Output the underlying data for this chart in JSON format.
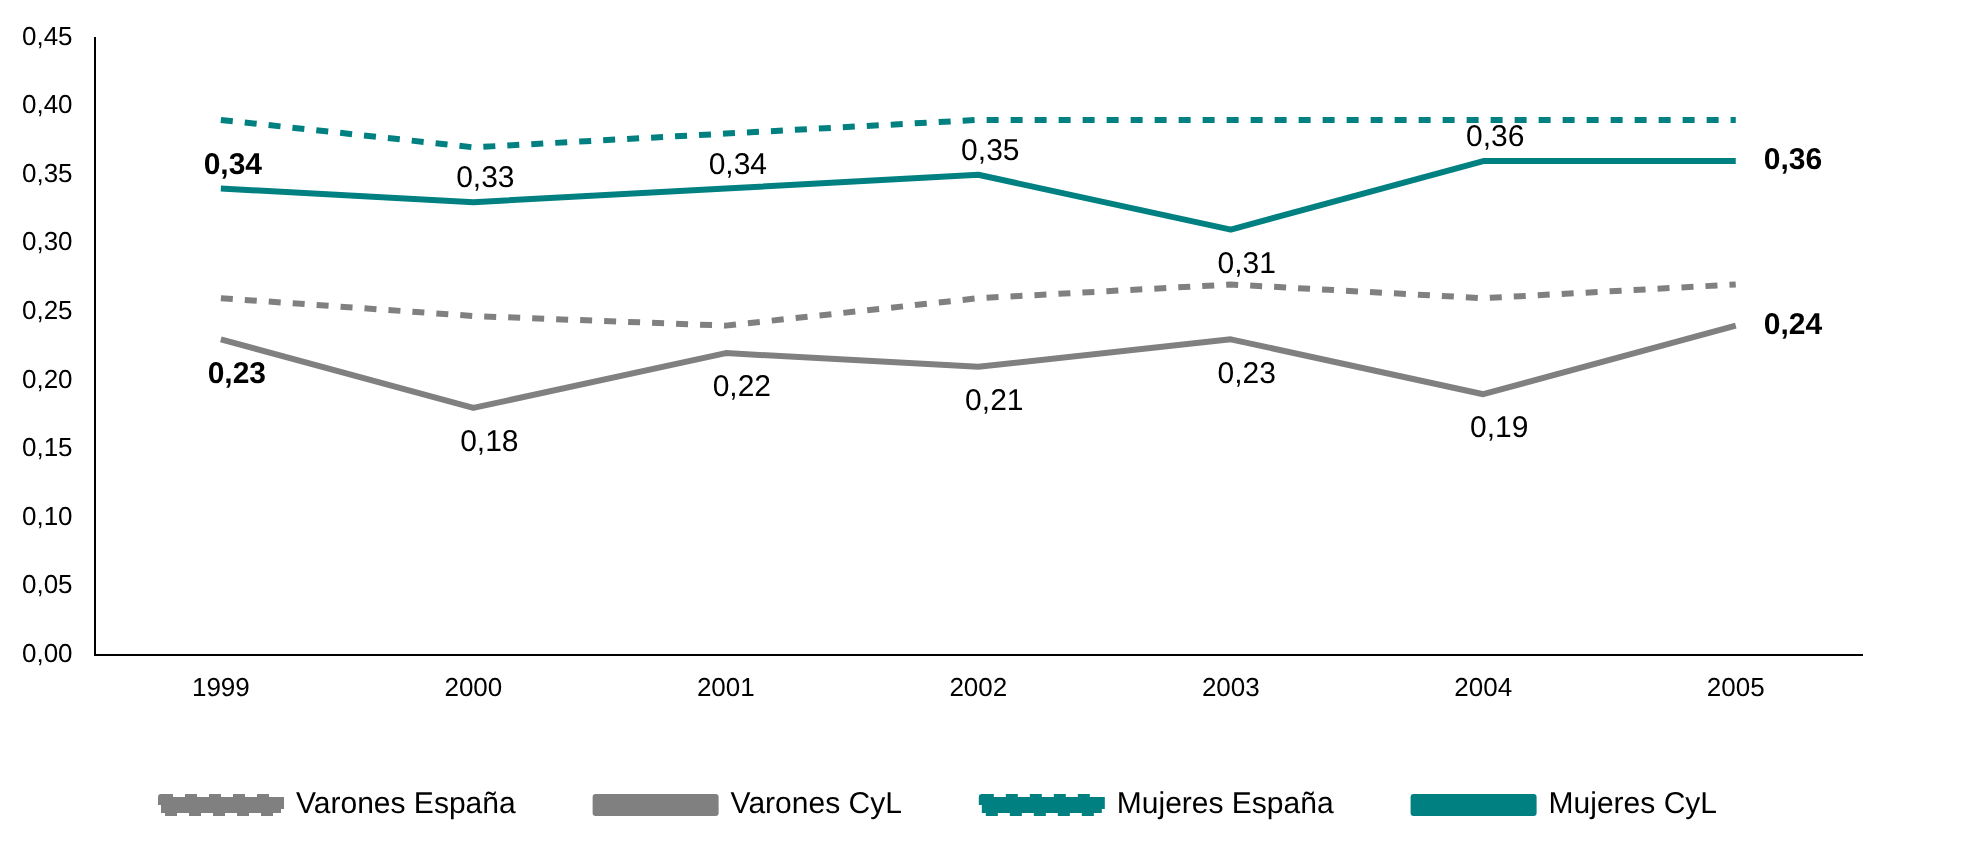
{
  "chart_data": {
    "type": "line",
    "categories": [
      "1999",
      "2000",
      "2001",
      "2002",
      "2003",
      "2004",
      "2005"
    ],
    "series": [
      {
        "name": "Varones España",
        "color": "#808080",
        "line_style": "dashed",
        "values": [
          0.26,
          0.247,
          0.24,
          0.26,
          0.27,
          0.26,
          0.27
        ]
      },
      {
        "name": "Varones CyL",
        "color": "#808080",
        "line_style": "solid",
        "values": [
          0.23,
          0.18,
          0.22,
          0.21,
          0.23,
          0.19,
          0.24
        ],
        "value_labels": [
          "0,23",
          "0,18",
          "0,22",
          "0,21",
          "0,23",
          "0,19",
          "0,24"
        ]
      },
      {
        "name": "Mujeres España",
        "color": "#008080",
        "line_style": "dashed",
        "values": [
          0.39,
          0.37,
          0.38,
          0.39,
          0.39,
          0.39,
          0.39
        ]
      },
      {
        "name": "Mujeres CyL",
        "color": "#008080",
        "line_style": "solid",
        "values": [
          0.34,
          0.33,
          0.34,
          0.35,
          0.31,
          0.36,
          0.36
        ],
        "value_labels": [
          "0,34",
          "0,33",
          "0,34",
          "0,35",
          "0,31",
          "0,36",
          "0,36"
        ]
      }
    ],
    "ylim": [
      0,
      0.45
    ],
    "yticks": [
      {
        "value": 0,
        "label": "0,00"
      },
      {
        "value": 0.05,
        "label": "0,05"
      },
      {
        "value": 0.1,
        "label": "0,10"
      },
      {
        "value": 0.15,
        "label": "0,15"
      },
      {
        "value": 0.2,
        "label": "0,20"
      },
      {
        "value": 0.25,
        "label": "0,25"
      },
      {
        "value": 0.3,
        "label": "0,30"
      },
      {
        "value": 0.35,
        "label": "0,35"
      },
      {
        "value": 0.4,
        "label": "0,40"
      },
      {
        "value": 0.45,
        "label": "0,45"
      }
    ],
    "grid": false,
    "legend": "bottom",
    "marker": "none"
  }
}
